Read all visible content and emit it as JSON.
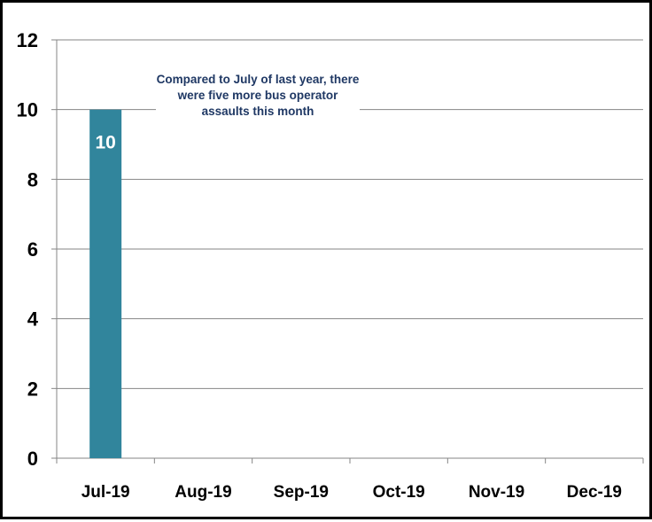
{
  "chart_data": {
    "type": "bar",
    "title": "",
    "xlabel": "",
    "ylabel": "",
    "categories": [
      "Jul-19",
      "Aug-19",
      "Sep-19",
      "Oct-19",
      "Nov-19",
      "Dec-19"
    ],
    "values": [
      10,
      null,
      null,
      null,
      null,
      null
    ],
    "data_labels": [
      "10",
      "",
      "",
      "",
      "",
      ""
    ],
    "ylim": [
      0,
      12
    ],
    "yticks": [
      0,
      2,
      4,
      6,
      8,
      10,
      12
    ],
    "grid": true,
    "legend": "none",
    "bar_color": "#31859c",
    "gridline_color": "#868686",
    "annotation": "Compared to July of last year, there were five more bus operator assaults this month",
    "annotation_color": "#1f3864"
  }
}
